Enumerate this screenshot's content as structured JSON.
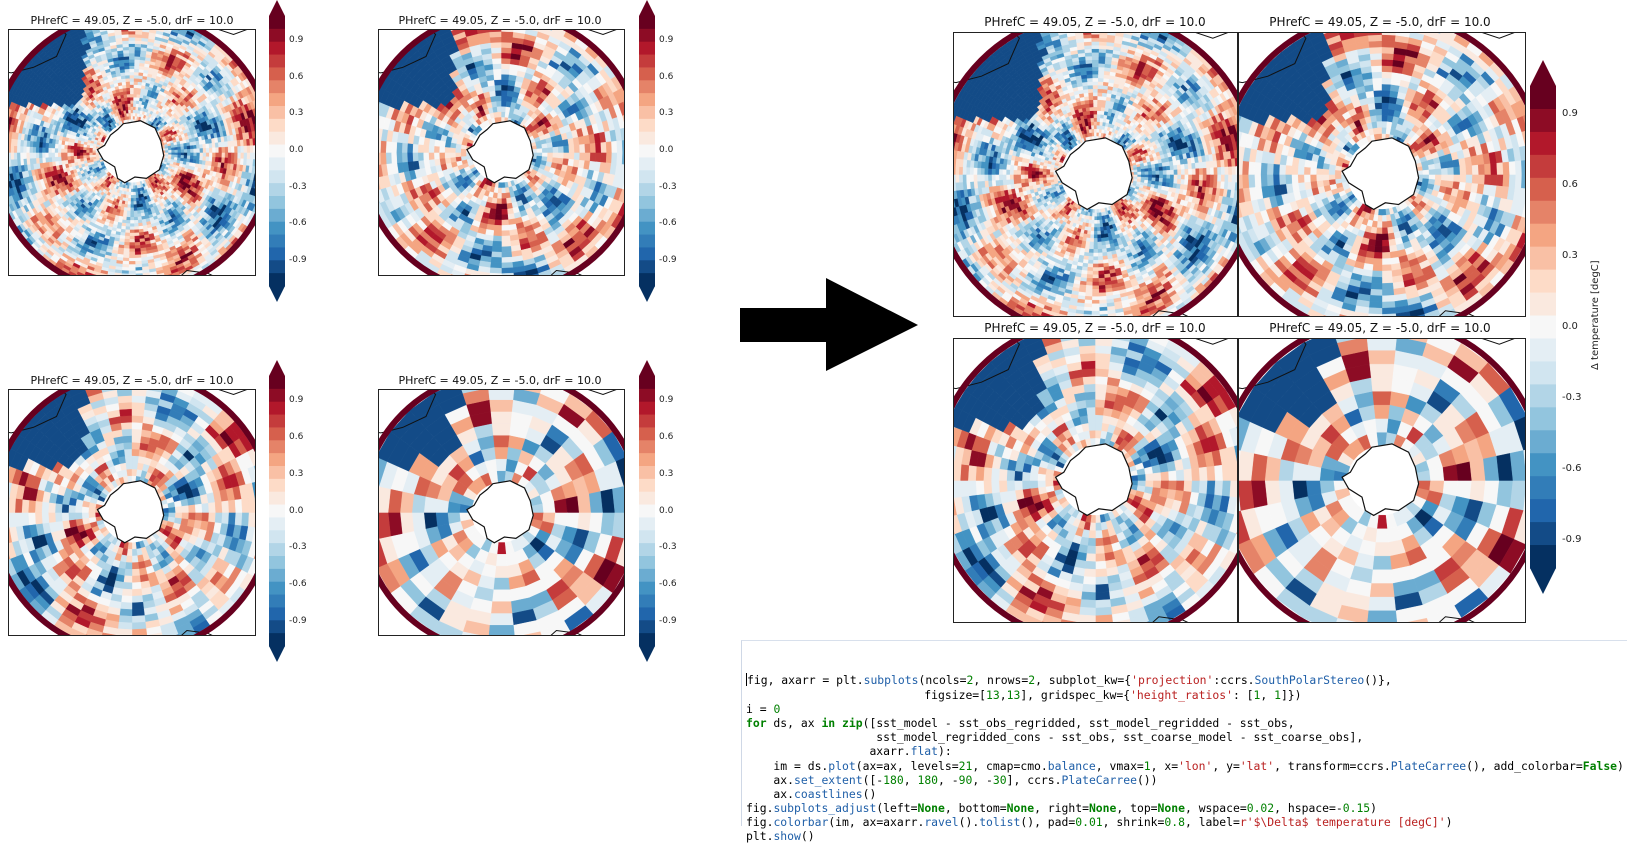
{
  "panel_title": "PHrefC = 49.05, Z = -5.0, drF = 10.0",
  "colorbar_ticks": [
    "0.9",
    "0.6",
    "0.3",
    "0.0",
    "-0.3",
    "-0.6",
    "-0.9"
  ],
  "colorbar_label": "Δ temperature [degC]",
  "colors": {
    "dark_red": "#67001f",
    "red": "#b2182b",
    "mid_red": "#d6604d",
    "light_red": "#f4a582",
    "pale_red": "#fddbc7",
    "white": "#f7f7f7",
    "pale_blue": "#d1e5f0",
    "light_blue": "#92c5de",
    "mid_blue": "#4393c3",
    "blue": "#2166ac",
    "dark_blue": "#053061",
    "code_keyword": "#008000",
    "code_string": "#ba2121",
    "code_function": "#1f5fa8"
  },
  "code_lines": [
    "fig, axarr = plt.subplots(ncols=2, nrows=2, subplot_kw={'projection':ccrs.SouthPolarStereo()},",
    "                          figsize=[13,13], gridspec_kw={'height_ratios': [1, 1]})",
    "i = 0",
    "for ds, ax in zip([sst_model - sst_obs_regridded, sst_model_regridded - sst_obs,",
    "                   sst_model_regridded_cons - sst_obs, sst_coarse_model - sst_coarse_obs],",
    "                  axarr.flat):",
    "    im = ds.plot(ax=ax, levels=21, cmap=cmo.balance, vmax=1, x='lon', y='lat', transform=ccrs.PlateCarree(), add_colorbar=False)",
    "    ax.set_extent([-180, 180, -90, -30], ccrs.PlateCarree())",
    "    ax.coastlines()",
    "fig.subplots_adjust(left=None, bottom=None, right=None, top=None, wspace=0.02, hspace=-0.15)",
    "fig.colorbar(im, ax=axarr.ravel().tolist(), pad=0.01, shrink=0.8, label=r'$\\Delta$ temperature [degC]')",
    "plt.show()"
  ]
}
